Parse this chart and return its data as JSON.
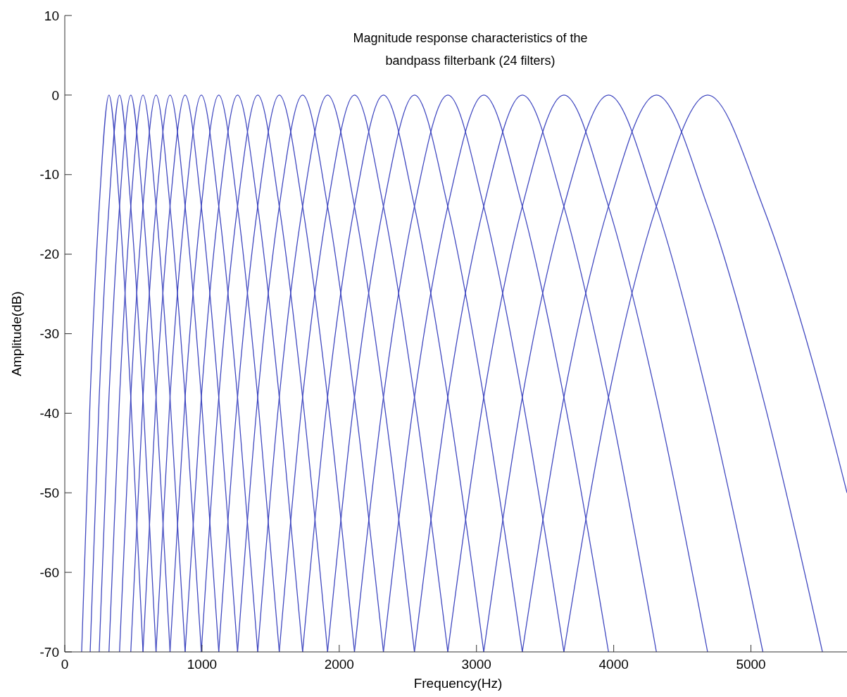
{
  "chart_data": {
    "type": "line",
    "title": "Magnitude response characteristics of the bandpass filterbank (24 filters)",
    "xlabel": "Frequency(Hz)",
    "ylabel": "Amplitude(dB)",
    "xlim": [
      0,
      5700
    ],
    "ylim": [
      -70,
      10
    ],
    "xticks": [
      0,
      1000,
      2000,
      3000,
      4000,
      5000
    ],
    "yticks": [
      10,
      0,
      -10,
      -20,
      -30,
      -40,
      -50,
      -60,
      -70
    ],
    "grid": false,
    "marker": "none",
    "line_style": "solid",
    "series": [
      {
        "color": "#4048c0",
        "x": [
          123,
          185,
          251,
          322,
          399,
          481,
          570
        ],
        "values": [
          -70,
          -38,
          -14,
          0,
          -14,
          -38,
          -70
        ]
      },
      {
        "color": "#4048c0",
        "x": [
          185,
          251,
          322,
          399,
          481,
          570,
          665
        ],
        "values": [
          -70,
          -38,
          -14,
          0,
          -14,
          -38,
          -70
        ]
      },
      {
        "color": "#4048c0",
        "x": [
          251,
          322,
          399,
          481,
          570,
          665,
          767
        ],
        "values": [
          -70,
          -38,
          -14,
          0,
          -14,
          -38,
          -70
        ]
      },
      {
        "color": "#4048c0",
        "x": [
          322,
          399,
          481,
          570,
          665,
          767,
          877
        ],
        "values": [
          -70,
          -38,
          -14,
          0,
          -14,
          -38,
          -70
        ]
      },
      {
        "color": "#4048c0",
        "x": [
          399,
          481,
          570,
          665,
          767,
          877,
          995
        ],
        "values": [
          -70,
          -38,
          -14,
          0,
          -14,
          -38,
          -70
        ]
      },
      {
        "color": "#4048c0",
        "x": [
          481,
          570,
          665,
          767,
          877,
          995,
          1122
        ],
        "values": [
          -70,
          -38,
          -14,
          0,
          -14,
          -38,
          -70
        ]
      },
      {
        "color": "#4048c0",
        "x": [
          570,
          665,
          767,
          877,
          995,
          1122,
          1259
        ],
        "values": [
          -70,
          -38,
          -14,
          0,
          -14,
          -38,
          -70
        ]
      },
      {
        "color": "#4048c0",
        "x": [
          665,
          767,
          877,
          995,
          1122,
          1259,
          1406
        ],
        "values": [
          -70,
          -38,
          -14,
          0,
          -14,
          -38,
          -70
        ]
      },
      {
        "color": "#4048c0",
        "x": [
          767,
          877,
          995,
          1122,
          1259,
          1406,
          1563
        ],
        "values": [
          -70,
          -38,
          -14,
          0,
          -14,
          -38,
          -70
        ]
      },
      {
        "color": "#4048c0",
        "x": [
          877,
          995,
          1122,
          1259,
          1406,
          1563,
          1733
        ],
        "values": [
          -70,
          -38,
          -14,
          0,
          -14,
          -38,
          -70
        ]
      },
      {
        "color": "#4048c0",
        "x": [
          995,
          1122,
          1259,
          1406,
          1563,
          1733,
          1915
        ],
        "values": [
          -70,
          -38,
          -14,
          0,
          -14,
          -38,
          -70
        ]
      },
      {
        "color": "#4048c0",
        "x": [
          1122,
          1259,
          1406,
          1563,
          1733,
          1915,
          2111
        ],
        "values": [
          -70,
          -38,
          -14,
          0,
          -14,
          -38,
          -70
        ]
      },
      {
        "color": "#4048c0",
        "x": [
          1259,
          1406,
          1563,
          1733,
          1915,
          2111,
          2322
        ],
        "values": [
          -70,
          -38,
          -14,
          0,
          -14,
          -38,
          -70
        ]
      },
      {
        "color": "#4048c0",
        "x": [
          1406,
          1563,
          1733,
          1915,
          2111,
          2322,
          2548
        ],
        "values": [
          -70,
          -38,
          -14,
          0,
          -14,
          -38,
          -70
        ]
      },
      {
        "color": "#4048c0",
        "x": [
          1563,
          1733,
          1915,
          2111,
          2322,
          2548,
          2791
        ],
        "values": [
          -70,
          -38,
          -14,
          0,
          -14,
          -38,
          -70
        ]
      },
      {
        "color": "#4048c0",
        "x": [
          1733,
          1915,
          2111,
          2322,
          2548,
          2791,
          3053
        ],
        "values": [
          -70,
          -38,
          -14,
          0,
          -14,
          -38,
          -70
        ]
      },
      {
        "color": "#4048c0",
        "x": [
          1915,
          2111,
          2322,
          2548,
          2791,
          3053,
          3334
        ],
        "values": [
          -70,
          -38,
          -14,
          0,
          -14,
          -38,
          -70
        ]
      },
      {
        "color": "#4048c0",
        "x": [
          2111,
          2322,
          2548,
          2791,
          3053,
          3334,
          3637
        ],
        "values": [
          -70,
          -38,
          -14,
          0,
          -14,
          -38,
          -70
        ]
      },
      {
        "color": "#4048c0",
        "x": [
          2322,
          2548,
          2791,
          3053,
          3334,
          3637,
          3962
        ],
        "values": [
          -70,
          -38,
          -14,
          0,
          -14,
          -38,
          -70
        ]
      },
      {
        "color": "#4048c0",
        "x": [
          2548,
          2791,
          3053,
          3334,
          3637,
          3962,
          4311
        ],
        "values": [
          -70,
          -38,
          -14,
          0,
          -14,
          -38,
          -70
        ]
      },
      {
        "color": "#4048c0",
        "x": [
          2791,
          3053,
          3334,
          3637,
          3962,
          4311,
          4684
        ],
        "values": [
          -70,
          -38,
          -14,
          0,
          -14,
          -38,
          -70
        ]
      },
      {
        "color": "#4048c0",
        "x": [
          3053,
          3334,
          3637,
          3962,
          4311,
          4684,
          5087
        ],
        "values": [
          -70,
          -38,
          -14,
          0,
          -14,
          -38,
          -70
        ]
      },
      {
        "color": "#4048c0",
        "x": [
          3334,
          3637,
          3962,
          4311,
          4684,
          5087,
          5521
        ],
        "values": [
          -70,
          -38,
          -14,
          0,
          -14,
          -38,
          -70
        ]
      },
      {
        "color": "#4048c0",
        "x": [
          3637,
          3962,
          4311,
          4684,
          5087,
          5521,
          5700
        ],
        "values": [
          -70,
          -38,
          -14,
          0,
          -14,
          -38,
          -50
        ]
      }
    ]
  }
}
